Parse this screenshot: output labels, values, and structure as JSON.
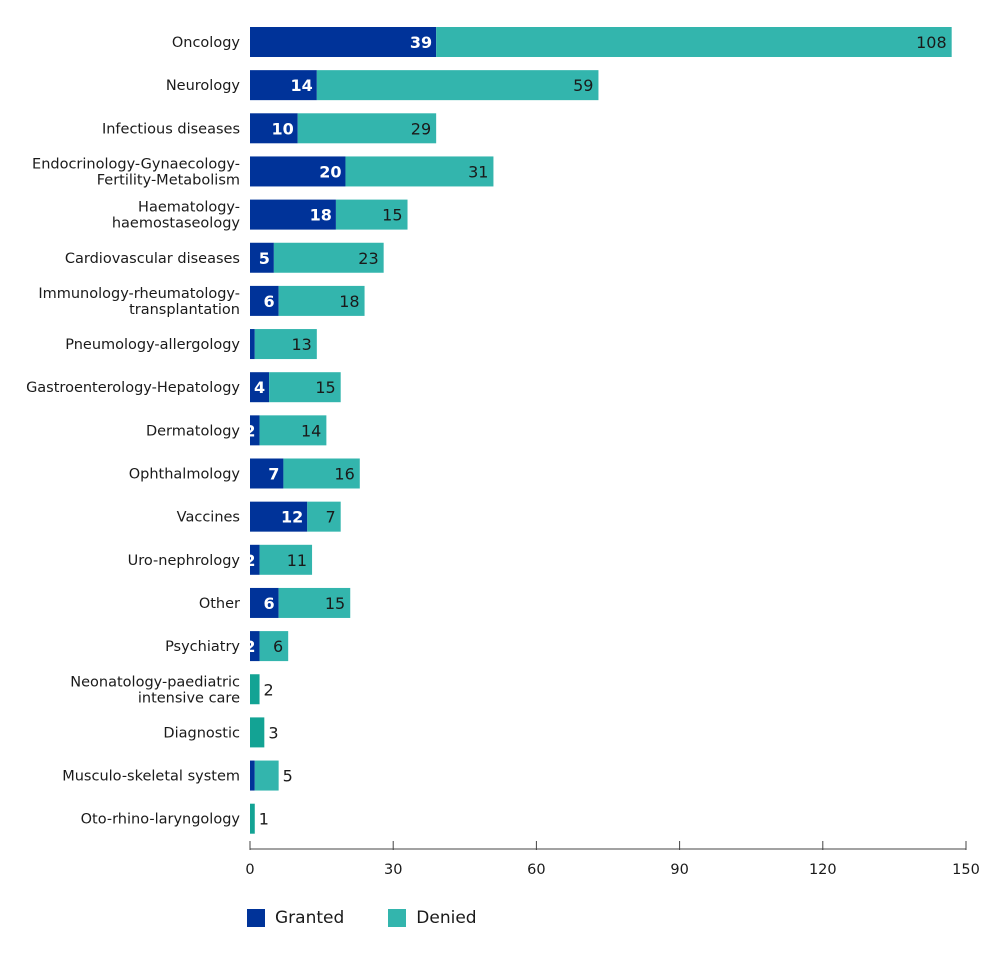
{
  "chart_data": {
    "type": "bar",
    "orientation": "horizontal",
    "stacked": true,
    "title": "",
    "xlabel": "",
    "ylabel": "",
    "xlim": [
      0,
      150
    ],
    "xticks": [
      0,
      30,
      60,
      90,
      120,
      150
    ],
    "grid": false,
    "legend_position": "bottom-left",
    "categories": [
      "Oncology",
      "Neurology",
      "Infectious diseases",
      "Endocrinology-Gynaecology-Fertility-Metabolism",
      "Haematology-haemostaseology",
      "Cardiovascular diseases",
      "Immunology-rheumatology-transplantation",
      "Pneumology-allergology",
      "Gastroenterology-Hepatology",
      "Dermatology",
      "Ophthalmology",
      "Vaccines",
      "Uro-nephrology",
      "Other",
      "Psychiatry",
      "Neonatology-paediatric intensive care",
      "Diagnostic",
      "Musculo-skeletal system",
      "Oto-rhino-laryngology"
    ],
    "category_label_lines": [
      [
        "Oncology"
      ],
      [
        "Neurology"
      ],
      [
        "Infectious diseases"
      ],
      [
        "Endocrinology-Gynaecology-",
        "Fertility-Metabolism"
      ],
      [
        "Haematology-",
        "haemostaseology"
      ],
      [
        "Cardiovascular diseases"
      ],
      [
        "Immunology-rheumatology-",
        "transplantation"
      ],
      [
        "Pneumology-allergology"
      ],
      [
        "Gastroenterology-Hepatology"
      ],
      [
        "Dermatology"
      ],
      [
        "Ophthalmology"
      ],
      [
        "Vaccines"
      ],
      [
        "Uro-nephrology"
      ],
      [
        "Other"
      ],
      [
        "Psychiatry"
      ],
      [
        "Neonatology-paediatric",
        "intensive care"
      ],
      [
        "Diagnostic"
      ],
      [
        "Musculo-skeletal system"
      ],
      [
        "Oto-rhino-laryngology"
      ]
    ],
    "series": [
      {
        "name": "Granted",
        "color": "#003399",
        "values": [
          39,
          14,
          10,
          20,
          18,
          5,
          6,
          1,
          4,
          2,
          7,
          12,
          2,
          6,
          2,
          0,
          0,
          1,
          0
        ]
      },
      {
        "name": "Denied",
        "color": "#33b5ad",
        "values": [
          108,
          59,
          29,
          31,
          15,
          23,
          18,
          13,
          15,
          14,
          16,
          7,
          11,
          15,
          6,
          2,
          3,
          5,
          1
        ]
      }
    ],
    "denied_alt_color": "#13a394"
  }
}
